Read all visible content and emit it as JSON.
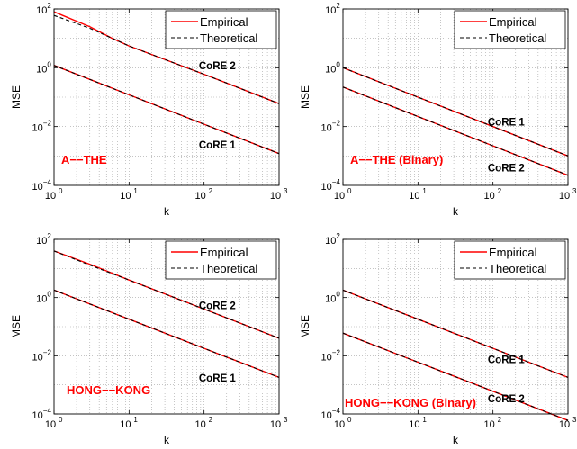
{
  "chart_data": [
    {
      "type": "line",
      "xscale": "log",
      "yscale": "log",
      "xlim": [
        1,
        1000
      ],
      "ylim": [
        0.0001,
        100
      ],
      "xlabel": "k",
      "ylabel": "MSE",
      "xticks": [
        1,
        10,
        100,
        1000
      ],
      "yticks": [
        0.0001,
        0.01,
        1,
        100
      ],
      "xticklabels": [
        [
          "10",
          "0"
        ],
        [
          "10",
          "1"
        ],
        [
          "10",
          "2"
        ],
        [
          "10",
          "3"
        ]
      ],
      "yticklabels": [
        [
          "10",
          "−4"
        ],
        [
          "10",
          "−2"
        ],
        [
          "10",
          "0"
        ],
        [
          "10",
          "2"
        ]
      ],
      "grid": true,
      "legend": {
        "position": "top-right",
        "entries": [
          "Empirical",
          "Theoretical"
        ]
      },
      "dataset_label": "A−−THE",
      "series": [
        {
          "name": "Empirical",
          "curve": "CoRE 2",
          "x": [
            1,
            3,
            6,
            10,
            100,
            1000
          ],
          "y": [
            80,
            25,
            10,
            5.5,
            0.6,
            0.06
          ]
        },
        {
          "name": "Theoretical",
          "curve": "CoRE 2",
          "x": [
            1,
            3,
            6,
            10,
            100,
            1000
          ],
          "y": [
            60,
            22,
            10,
            5.5,
            0.6,
            0.06
          ]
        },
        {
          "name": "Empirical",
          "curve": "CoRE 1",
          "x": [
            1,
            10,
            100,
            1000
          ],
          "y": [
            1.2,
            0.12,
            0.012,
            0.0012
          ]
        },
        {
          "name": "Theoretical",
          "curve": "CoRE 1",
          "x": [
            1,
            10,
            100,
            1000
          ],
          "y": [
            1.2,
            0.12,
            0.012,
            0.0012
          ]
        }
      ],
      "annotations": [
        {
          "text": "CoRE 2",
          "x": 150,
          "y": 0.9
        },
        {
          "text": "CoRE 1",
          "x": 150,
          "y": 0.0018
        }
      ]
    },
    {
      "type": "line",
      "xscale": "log",
      "yscale": "log",
      "xlim": [
        1,
        1000
      ],
      "ylim": [
        0.0001,
        100
      ],
      "xlabel": "k",
      "ylabel": "MSE",
      "xticks": [
        1,
        10,
        100,
        1000
      ],
      "yticks": [
        0.0001,
        0.01,
        1,
        100
      ],
      "xticklabels": [
        [
          "10",
          "0"
        ],
        [
          "10",
          "1"
        ],
        [
          "10",
          "2"
        ],
        [
          "10",
          "3"
        ]
      ],
      "yticklabels": [
        [
          "10",
          "−4"
        ],
        [
          "10",
          "−2"
        ],
        [
          "10",
          "0"
        ],
        [
          "10",
          "2"
        ]
      ],
      "grid": true,
      "legend": {
        "position": "top-right",
        "entries": [
          "Empirical",
          "Theoretical"
        ]
      },
      "dataset_label": "A−−THE (Binary)",
      "series": [
        {
          "name": "Empirical",
          "curve": "CoRE 1",
          "x": [
            1,
            10,
            100,
            1000
          ],
          "y": [
            1.0,
            0.1,
            0.01,
            0.001
          ]
        },
        {
          "name": "Theoretical",
          "curve": "CoRE 1",
          "x": [
            1,
            10,
            100,
            1000
          ],
          "y": [
            1.0,
            0.1,
            0.01,
            0.001
          ]
        },
        {
          "name": "Empirical",
          "curve": "CoRE 2",
          "x": [
            1,
            10,
            100,
            1000
          ],
          "y": [
            0.22,
            0.022,
            0.0022,
            0.00022
          ]
        },
        {
          "name": "Theoretical",
          "curve": "CoRE 2",
          "x": [
            1,
            10,
            100,
            1000
          ],
          "y": [
            0.22,
            0.022,
            0.0022,
            0.00022
          ]
        }
      ],
      "annotations": [
        {
          "text": "CoRE 1",
          "x": 150,
          "y": 0.011
        },
        {
          "text": "CoRE 2",
          "x": 150,
          "y": 0.0003
        }
      ]
    },
    {
      "type": "line",
      "xscale": "log",
      "yscale": "log",
      "xlim": [
        1,
        1000
      ],
      "ylim": [
        0.0001,
        100
      ],
      "xlabel": "k",
      "ylabel": "MSE",
      "xticks": [
        1,
        10,
        100,
        1000
      ],
      "yticks": [
        0.0001,
        0.01,
        1,
        100
      ],
      "xticklabels": [
        [
          "10",
          "0"
        ],
        [
          "10",
          "1"
        ],
        [
          "10",
          "2"
        ],
        [
          "10",
          "3"
        ]
      ],
      "yticklabels": [
        [
          "10",
          "−4"
        ],
        [
          "10",
          "−2"
        ],
        [
          "10",
          "0"
        ],
        [
          "10",
          "2"
        ]
      ],
      "grid": true,
      "legend": {
        "position": "top-right",
        "entries": [
          "Empirical",
          "Theoretical"
        ]
      },
      "dataset_label": "HONG−−KONG",
      "series": [
        {
          "name": "Empirical",
          "curve": "CoRE 2",
          "x": [
            1,
            3,
            10,
            100,
            1000
          ],
          "y": [
            40,
            14,
            4,
            0.4,
            0.04
          ]
        },
        {
          "name": "Theoretical",
          "curve": "CoRE 2",
          "x": [
            1,
            3,
            10,
            100,
            1000
          ],
          "y": [
            40,
            13,
            4,
            0.4,
            0.04
          ]
        },
        {
          "name": "Empirical",
          "curve": "CoRE 1",
          "x": [
            1,
            10,
            100,
            1000
          ],
          "y": [
            1.8,
            0.18,
            0.018,
            0.0018
          ]
        },
        {
          "name": "Theoretical",
          "curve": "CoRE 1",
          "x": [
            1,
            10,
            100,
            1000
          ],
          "y": [
            1.8,
            0.18,
            0.018,
            0.0018
          ]
        }
      ],
      "annotations": [
        {
          "text": "CoRE 2",
          "x": 150,
          "y": 0.4
        },
        {
          "text": "CoRE 1",
          "x": 150,
          "y": 0.0013
        }
      ]
    },
    {
      "type": "line",
      "xscale": "log",
      "yscale": "log",
      "xlim": [
        1,
        1000
      ],
      "ylim": [
        0.0001,
        100
      ],
      "xlabel": "k",
      "ylabel": "MSE",
      "xticks": [
        1,
        10,
        100,
        1000
      ],
      "yticks": [
        0.0001,
        0.01,
        1,
        100
      ],
      "xticklabels": [
        [
          "10",
          "0"
        ],
        [
          "10",
          "1"
        ],
        [
          "10",
          "2"
        ],
        [
          "10",
          "3"
        ]
      ],
      "yticklabels": [
        [
          "10",
          "−4"
        ],
        [
          "10",
          "−2"
        ],
        [
          "10",
          "0"
        ],
        [
          "10",
          "2"
        ]
      ],
      "grid": true,
      "legend": {
        "position": "top-right",
        "entries": [
          "Empirical",
          "Theoretical"
        ]
      },
      "dataset_label": "HONG−−KONG (Binary)",
      "series": [
        {
          "name": "Empirical",
          "curve": "CoRE 1",
          "x": [
            1,
            10,
            100,
            1000
          ],
          "y": [
            1.8,
            0.18,
            0.018,
            0.0018
          ]
        },
        {
          "name": "Theoretical",
          "curve": "CoRE 1",
          "x": [
            1,
            10,
            100,
            1000
          ],
          "y": [
            1.8,
            0.18,
            0.018,
            0.0018
          ]
        },
        {
          "name": "Empirical",
          "curve": "CoRE 2",
          "x": [
            1,
            10,
            100,
            1000
          ],
          "y": [
            0.06,
            0.006,
            0.0006,
            6e-05
          ]
        },
        {
          "name": "Theoretical",
          "curve": "CoRE 2",
          "x": [
            1,
            10,
            100,
            1000
          ],
          "y": [
            0.06,
            0.006,
            0.0006,
            6e-05
          ]
        }
      ],
      "annotations": [
        {
          "text": "CoRE 1",
          "x": 150,
          "y": 0.0055
        },
        {
          "text": "CoRE 2",
          "x": 150,
          "y": 0.00025
        }
      ]
    }
  ],
  "colors": {
    "empirical": "#ff0000",
    "theoretical": "#000000",
    "label": "#ff0000",
    "grid": "#a0a0a0"
  }
}
